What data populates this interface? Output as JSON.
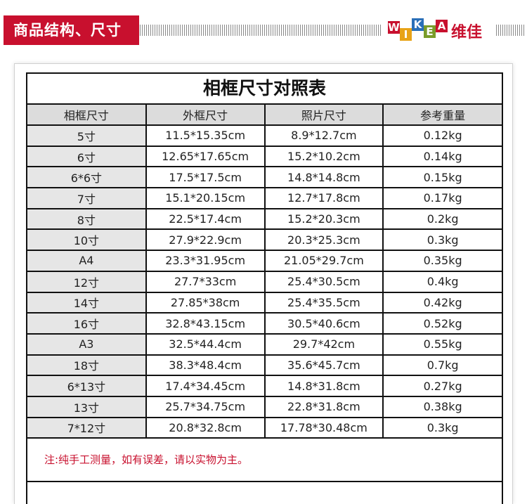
{
  "header": {
    "title": "商品结构、尺寸",
    "brand_letters": [
      "W",
      "I",
      "K",
      "E",
      "A"
    ],
    "brand_name": "维佳",
    "accent_color": "#c8102e"
  },
  "table": {
    "title": "相框尺寸对照表",
    "headers": [
      "相框尺寸",
      "外框尺寸",
      "照片尺寸",
      "参考重量"
    ],
    "rows": [
      [
        "5寸",
        "11.5*15.35cm",
        "8.9*12.7cm",
        "0.12kg"
      ],
      [
        "6寸",
        "12.65*17.65cm",
        "15.2*10.2cm",
        "0.14kg"
      ],
      [
        "6*6寸",
        "17.5*17.5cm",
        "14.8*14.8cm",
        "0.15kg"
      ],
      [
        "7寸",
        "15.1*20.15cm",
        "12.7*17.8cm",
        "0.17kg"
      ],
      [
        "8寸",
        "22.5*17.4cm",
        "15.2*20.3cm",
        "0.2kg"
      ],
      [
        "10寸",
        "27.9*22.9cm",
        "20.3*25.3cm",
        "0.3kg"
      ],
      [
        "A4",
        "23.3*31.95cm",
        "21.05*29.7cm",
        "0.35kg"
      ],
      [
        "12寸",
        "27.7*33cm",
        "25.4*30.5cm",
        "0.4kg"
      ],
      [
        "14寸",
        "27.85*38cm",
        "25.4*35.5cm",
        "0.42kg"
      ],
      [
        "16寸",
        "32.8*43.15cm",
        "30.5*40.6cm",
        "0.52kg"
      ],
      [
        "A3",
        "32.5*44.4cm",
        "29.7*42cm",
        "0.55kg"
      ],
      [
        "18寸",
        "38.3*48.4cm",
        "35.6*45.7cm",
        "0.7kg"
      ],
      [
        "6*13寸",
        "17.4*34.45cm",
        "14.8*31.8cm",
        "0.27kg"
      ],
      [
        "13寸",
        "25.7*34.75cm",
        "22.8*31.8cm",
        "0.38kg"
      ],
      [
        "7*12寸",
        "20.8*32.8cm",
        "17.78*30.48cm",
        "0.3kg"
      ]
    ],
    "note": "注:纯手工测量，如有误差，请以实物为主。"
  }
}
